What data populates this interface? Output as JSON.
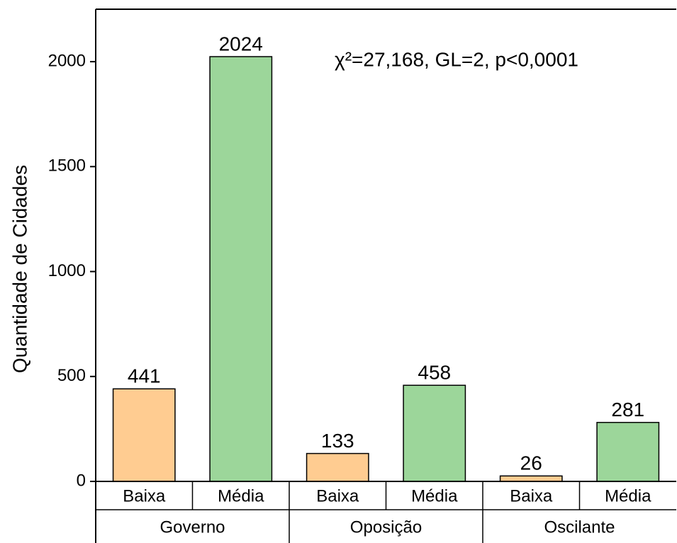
{
  "chart_data": {
    "type": "bar",
    "ylabel": "Quantidade de Cidades",
    "annotation": "χ²=27,168, GL=2, p<0,0001",
    "categories": [
      "Governo",
      "Oposição",
      "Oscilante"
    ],
    "series": [
      {
        "name": "Baixa",
        "color": "#ffcc91",
        "values": [
          441,
          133,
          26
        ]
      },
      {
        "name": "Média",
        "color": "#9cd69a",
        "values": [
          2024,
          458,
          281
        ]
      }
    ],
    "ylim": [
      0,
      2250
    ],
    "yticks": [
      0,
      500,
      1000,
      1500,
      2000
    ]
  }
}
